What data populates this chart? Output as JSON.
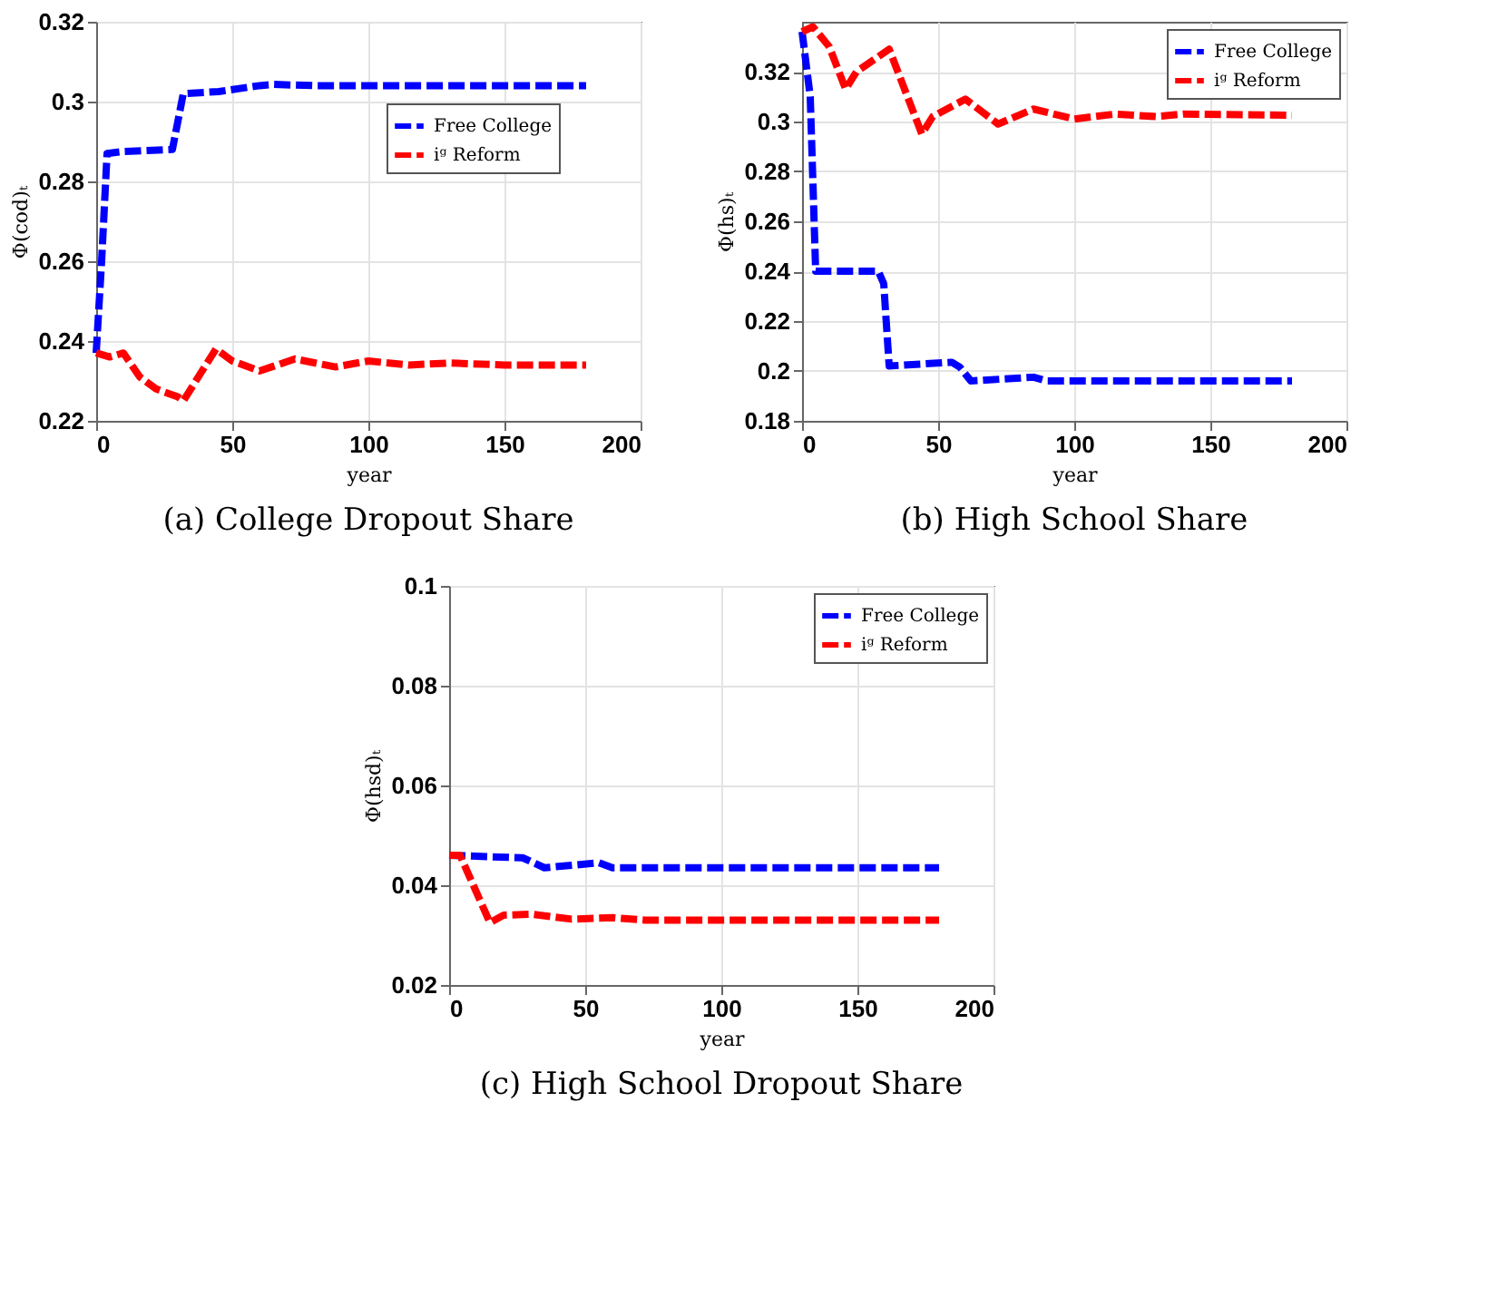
{
  "chart_data": [
    {
      "type": "line",
      "title": "(a) College Dropout Share",
      "xlabel": "year",
      "ylabel": "Φ(cod)ₜ",
      "xlim": [
        0,
        200
      ],
      "xticks": [
        0,
        50,
        100,
        150,
        200
      ],
      "ylim": [
        0.22,
        0.32
      ],
      "yticks": [
        0.22,
        0.24,
        0.26,
        0.28,
        0.3,
        0.32
      ],
      "grid": true,
      "legend": "top right",
      "line_style": "dashed",
      "marker": "none",
      "series": [
        {
          "name": "Free College",
          "color": "#0000ff",
          "x": [
            0,
            2,
            4,
            10,
            28,
            32,
            45,
            60,
            65,
            80,
            180
          ],
          "values": [
            0.237,
            0.26,
            0.287,
            0.2875,
            0.288,
            0.302,
            0.3025,
            0.304,
            0.3043,
            0.304,
            0.304
          ]
        },
        {
          "name": "iᵍ Reform",
          "color": "#ff0000",
          "x": [
            0,
            5,
            10,
            16,
            22,
            30,
            32,
            44,
            50,
            60,
            73,
            88,
            100,
            115,
            130,
            150,
            180
          ],
          "values": [
            0.237,
            0.236,
            0.237,
            0.231,
            0.228,
            0.226,
            0.225,
            0.238,
            0.235,
            0.2325,
            0.2355,
            0.2335,
            0.235,
            0.234,
            0.2345,
            0.234,
            0.234
          ]
        }
      ]
    },
    {
      "type": "line",
      "title": "(b) High School Share",
      "xlabel": "year",
      "ylabel": "Φ(hs)ₜ",
      "xlim": [
        0,
        200
      ],
      "xticks": [
        0,
        50,
        100,
        150,
        200
      ],
      "ylim": [
        0.18,
        0.34
      ],
      "yticks": [
        0.18,
        0.2,
        0.22,
        0.24,
        0.26,
        0.28,
        0.3,
        0.32
      ],
      "grid": true,
      "legend": "top right",
      "line_style": "dashed",
      "marker": "none",
      "series": [
        {
          "name": "Free College",
          "color": "#0000ff",
          "x": [
            0,
            3,
            5,
            28,
            30,
            32,
            55,
            58,
            62,
            85,
            90,
            180
          ],
          "values": [
            0.336,
            0.31,
            0.24,
            0.24,
            0.235,
            0.202,
            0.2035,
            0.2015,
            0.196,
            0.1975,
            0.196,
            0.196
          ]
        },
        {
          "name": "iᵍ Reform",
          "color": "#ff0000",
          "x": [
            0,
            4,
            10,
            16,
            20,
            32,
            44,
            48,
            60,
            72,
            85,
            100,
            115,
            130,
            140,
            180
          ],
          "values": [
            0.336,
            0.338,
            0.33,
            0.313,
            0.32,
            0.329,
            0.295,
            0.302,
            0.309,
            0.299,
            0.305,
            0.301,
            0.303,
            0.302,
            0.303,
            0.3025
          ]
        }
      ]
    },
    {
      "type": "line",
      "title": "(c) High School Dropout Share",
      "xlabel": "year",
      "ylabel": "Φ(hsd)ₜ",
      "xlim": [
        0,
        200
      ],
      "xticks": [
        0,
        50,
        100,
        150,
        200
      ],
      "ylim": [
        0.02,
        0.1
      ],
      "yticks": [
        0.02,
        0.04,
        0.06,
        0.08,
        0.1
      ],
      "grid": true,
      "legend": "top right",
      "line_style": "dashed",
      "marker": "none",
      "series": [
        {
          "name": "Free College",
          "color": "#0000ff",
          "x": [
            0,
            27,
            35,
            45,
            55,
            60,
            180
          ],
          "values": [
            0.046,
            0.0455,
            0.0435,
            0.044,
            0.0445,
            0.0435,
            0.0435
          ]
        },
        {
          "name": "iᵍ Reform",
          "color": "#ff0000",
          "x": [
            0,
            4,
            15,
            20,
            30,
            45,
            60,
            72,
            180
          ],
          "values": [
            0.046,
            0.046,
            0.0325,
            0.034,
            0.0342,
            0.0332,
            0.0335,
            0.033,
            0.033
          ]
        }
      ]
    }
  ]
}
